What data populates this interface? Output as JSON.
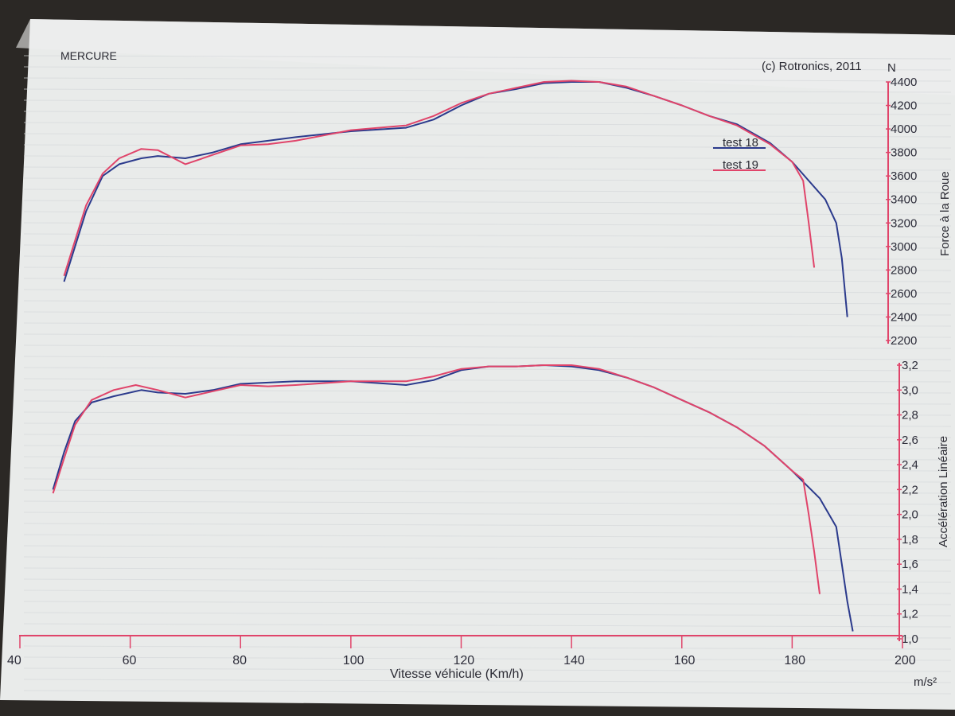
{
  "chart_data": [
    {
      "type": "line",
      "title": "MERCURE",
      "copyright": "(c) Rotronics, 2011",
      "xlabel": "Vitesse véhicule (Km/h)",
      "ylabel": "Force à la Roue",
      "yunit": "N",
      "xlim": [
        40,
        200
      ],
      "ylim": [
        2200,
        4400
      ],
      "x_ticks": [
        "40",
        "60",
        "80",
        "100",
        "120",
        "140",
        "160",
        "180",
        "200"
      ],
      "y_ticks": [
        "2200",
        "2400",
        "2600",
        "2800",
        "3000",
        "3200",
        "3400",
        "3600",
        "3800",
        "4000",
        "4200",
        "4400"
      ],
      "grid": true,
      "legend_position": "upper-right",
      "series": [
        {
          "name": "test 18",
          "color": "#2b3a8c",
          "points": [
            [
              48,
              2700
            ],
            [
              50,
              3000
            ],
            [
              52,
              3300
            ],
            [
              55,
              3600
            ],
            [
              58,
              3700
            ],
            [
              62,
              3750
            ],
            [
              65,
              3770
            ],
            [
              70,
              3750
            ],
            [
              75,
              3800
            ],
            [
              80,
              3870
            ],
            [
              85,
              3900
            ],
            [
              90,
              3930
            ],
            [
              100,
              3980
            ],
            [
              110,
              4010
            ],
            [
              115,
              4080
            ],
            [
              120,
              4200
            ],
            [
              125,
              4300
            ],
            [
              130,
              4340
            ],
            [
              135,
              4390
            ],
            [
              140,
              4400
            ],
            [
              145,
              4400
            ],
            [
              150,
              4350
            ],
            [
              155,
              4280
            ],
            [
              160,
              4200
            ],
            [
              165,
              4110
            ],
            [
              170,
              4040
            ],
            [
              176,
              3880
            ],
            [
              180,
              3720
            ],
            [
              183,
              3560
            ],
            [
              186,
              3400
            ],
            [
              188,
              3200
            ],
            [
              189,
              2900
            ],
            [
              190,
              2400
            ]
          ]
        },
        {
          "name": "test 19",
          "color": "#e0446a",
          "points": [
            [
              48,
              2750
            ],
            [
              50,
              3050
            ],
            [
              52,
              3350
            ],
            [
              55,
              3620
            ],
            [
              58,
              3750
            ],
            [
              62,
              3830
            ],
            [
              65,
              3820
            ],
            [
              70,
              3700
            ],
            [
              75,
              3780
            ],
            [
              80,
              3860
            ],
            [
              85,
              3870
            ],
            [
              90,
              3900
            ],
            [
              100,
              3990
            ],
            [
              110,
              4030
            ],
            [
              115,
              4110
            ],
            [
              120,
              4220
            ],
            [
              125,
              4300
            ],
            [
              130,
              4350
            ],
            [
              135,
              4400
            ],
            [
              140,
              4410
            ],
            [
              145,
              4400
            ],
            [
              150,
              4360
            ],
            [
              155,
              4280
            ],
            [
              160,
              4200
            ],
            [
              165,
              4110
            ],
            [
              170,
              4030
            ],
            [
              176,
              3870
            ],
            [
              180,
              3720
            ],
            [
              182,
              3560
            ],
            [
              183,
              3200
            ],
            [
              184,
              2820
            ]
          ]
        }
      ]
    },
    {
      "type": "line",
      "xlabel": "Vitesse véhicule (Km/h)",
      "ylabel": "Accélération Linéaire",
      "yunit": "m/s²",
      "xlim": [
        40,
        200
      ],
      "ylim": [
        1.0,
        3.2
      ],
      "x_ticks": [
        "40",
        "60",
        "80",
        "100",
        "120",
        "140",
        "160",
        "180",
        "200"
      ],
      "y_ticks": [
        "1,0",
        "1,2",
        "1,4",
        "1,6",
        "1,8",
        "2,0",
        "2,2",
        "2,4",
        "2,6",
        "2,8",
        "3,0",
        "3,2"
      ],
      "grid": true,
      "series": [
        {
          "name": "test 18",
          "color": "#2b3a8c",
          "points": [
            [
              46,
              2.2
            ],
            [
              48,
              2.5
            ],
            [
              50,
              2.75
            ],
            [
              53,
              2.9
            ],
            [
              57,
              2.95
            ],
            [
              62,
              3.0
            ],
            [
              65,
              2.98
            ],
            [
              70,
              2.97
            ],
            [
              75,
              3.0
            ],
            [
              80,
              3.05
            ],
            [
              90,
              3.07
            ],
            [
              100,
              3.07
            ],
            [
              110,
              3.04
            ],
            [
              115,
              3.08
            ],
            [
              120,
              3.16
            ],
            [
              125,
              3.19
            ],
            [
              130,
              3.19
            ],
            [
              135,
              3.2
            ],
            [
              140,
              3.19
            ],
            [
              145,
              3.16
            ],
            [
              150,
              3.1
            ],
            [
              155,
              3.02
            ],
            [
              160,
              2.92
            ],
            [
              165,
              2.82
            ],
            [
              170,
              2.7
            ],
            [
              175,
              2.55
            ],
            [
              180,
              2.35
            ],
            [
              185,
              2.13
            ],
            [
              188,
              1.9
            ],
            [
              189,
              1.6
            ],
            [
              190,
              1.3
            ],
            [
              191,
              1.06
            ]
          ]
        },
        {
          "name": "test 19",
          "color": "#e0446a",
          "points": [
            [
              46,
              2.17
            ],
            [
              48,
              2.45
            ],
            [
              50,
              2.72
            ],
            [
              53,
              2.92
            ],
            [
              57,
              3.0
            ],
            [
              61,
              3.04
            ],
            [
              65,
              3.0
            ],
            [
              70,
              2.94
            ],
            [
              75,
              2.99
            ],
            [
              80,
              3.04
            ],
            [
              85,
              3.03
            ],
            [
              90,
              3.04
            ],
            [
              100,
              3.07
            ],
            [
              110,
              3.07
            ],
            [
              115,
              3.11
            ],
            [
              120,
              3.17
            ],
            [
              125,
              3.19
            ],
            [
              130,
              3.19
            ],
            [
              135,
              3.2
            ],
            [
              140,
              3.2
            ],
            [
              145,
              3.17
            ],
            [
              150,
              3.1
            ],
            [
              155,
              3.02
            ],
            [
              160,
              2.92
            ],
            [
              165,
              2.82
            ],
            [
              170,
              2.7
            ],
            [
              175,
              2.55
            ],
            [
              180,
              2.35
            ],
            [
              182,
              2.28
            ],
            [
              183,
              2.0
            ],
            [
              184,
              1.7
            ],
            [
              185,
              1.36
            ]
          ]
        }
      ]
    }
  ]
}
